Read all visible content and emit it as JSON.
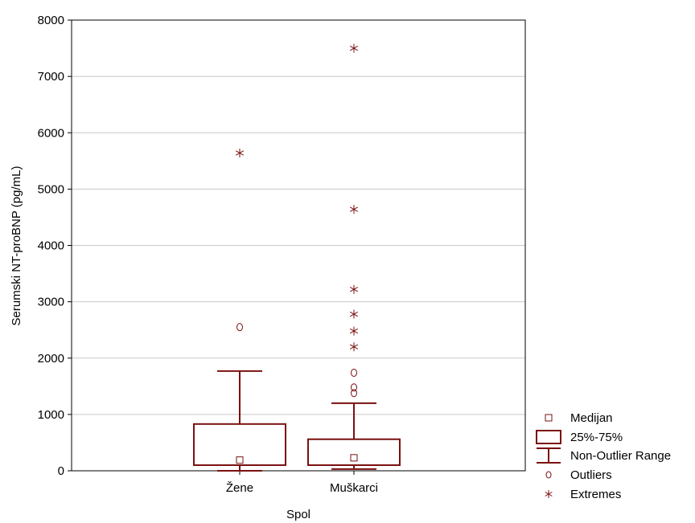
{
  "chart_data": {
    "type": "box",
    "xlabel": "Spol",
    "ylabel": "Serumski NT-proBNP (pg/mL)",
    "ylim": [
      0,
      8000
    ],
    "yticks": [
      0,
      1000,
      2000,
      3000,
      4000,
      5000,
      6000,
      7000,
      8000
    ],
    "grid": true,
    "legend_position": "bottom-right outside",
    "colors": {
      "series": "#7a1010"
    },
    "categories": [
      "Žene",
      "Muškarci"
    ],
    "boxes": [
      {
        "category": "Žene",
        "median": 190,
        "q1": 100,
        "q3": 830,
        "whisker_low": 0,
        "whisker_high": 1770,
        "outliers": [
          2550
        ],
        "extremes": [
          5640
        ]
      },
      {
        "category": "Muškarci",
        "median": 230,
        "q1": 100,
        "q3": 560,
        "whisker_low": 30,
        "whisker_high": 1200,
        "outliers": [
          1380,
          1480,
          1740
        ],
        "extremes": [
          2200,
          2480,
          2780,
          3220,
          4640,
          7500
        ]
      }
    ],
    "legend": [
      {
        "symbol": "median",
        "label": "Medijan"
      },
      {
        "symbol": "box",
        "label": "25%-75%"
      },
      {
        "symbol": "whisker",
        "label": "Non-Outlier Range"
      },
      {
        "symbol": "outlier",
        "label": "Outliers"
      },
      {
        "symbol": "extreme",
        "label": "Extremes"
      }
    ]
  }
}
